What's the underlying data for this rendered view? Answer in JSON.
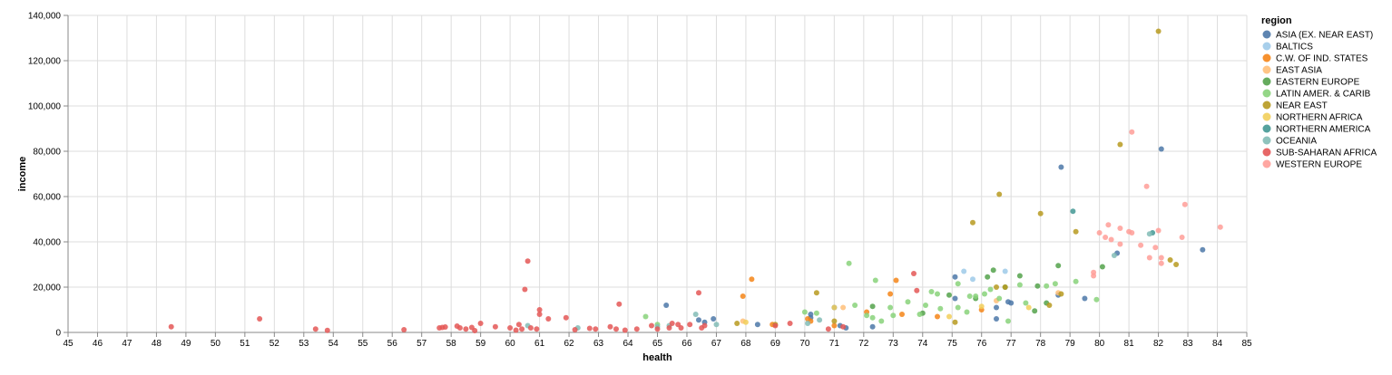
{
  "chart_data": {
    "type": "scatter",
    "xlabel": "health",
    "ylabel": "income",
    "xlim": [
      45,
      85
    ],
    "ylim": [
      0,
      140000
    ],
    "x_ticks": [
      45,
      46,
      47,
      48,
      49,
      50,
      51,
      52,
      53,
      54,
      55,
      56,
      57,
      58,
      59,
      60,
      61,
      62,
      63,
      64,
      65,
      66,
      67,
      68,
      69,
      70,
      71,
      72,
      73,
      74,
      75,
      76,
      77,
      78,
      79,
      80,
      81,
      82,
      83,
      84,
      85
    ],
    "y_ticks": [
      0,
      20000,
      40000,
      60000,
      80000,
      100000,
      120000,
      140000
    ],
    "y_tick_labels": [
      "0",
      "20,000",
      "40,000",
      "60,000",
      "80,000",
      "100,000",
      "120,000",
      "140,000"
    ],
    "grid": true,
    "legend": {
      "title": "region",
      "placement": "right",
      "entries": [
        {
          "name": "ASIA (EX. NEAR EAST)",
          "color": "#4c78a8"
        },
        {
          "name": "BALTICS",
          "color": "#9ecae9"
        },
        {
          "name": "C.W. OF IND. STATES",
          "color": "#f58518"
        },
        {
          "name": "EAST ASIA",
          "color": "#ffbf79"
        },
        {
          "name": "EASTERN EUROPE",
          "color": "#54a24b"
        },
        {
          "name": "LATIN AMER. & CARIB",
          "color": "#88d27a"
        },
        {
          "name": "NEAR EAST",
          "color": "#b79a20"
        },
        {
          "name": "NORTHERN AFRICA",
          "color": "#f2cf5b"
        },
        {
          "name": "NORTHERN AMERICA",
          "color": "#439894"
        },
        {
          "name": "OCEANIA",
          "color": "#83bcb6"
        },
        {
          "name": "SUB-SAHARAN AFRICA",
          "color": "#e45756"
        },
        {
          "name": "WESTERN EUROPE",
          "color": "#ff9d98"
        }
      ]
    },
    "series": [
      {
        "name": "ASIA (EX. NEAR EAST)",
        "points": [
          [
            65.3,
            12000
          ],
          [
            66.4,
            5500
          ],
          [
            66.6,
            4500
          ],
          [
            66.9,
            6000
          ],
          [
            68.4,
            3500
          ],
          [
            70.2,
            8000
          ],
          [
            70.2,
            6500
          ],
          [
            71.0,
            11000
          ],
          [
            71.2,
            3000
          ],
          [
            71.4,
            2000
          ],
          [
            72.3,
            2500
          ],
          [
            75.1,
            15000
          ],
          [
            75.1,
            24500
          ],
          [
            76.5,
            6000
          ],
          [
            76.5,
            11000
          ],
          [
            76.9,
            13500
          ],
          [
            77.0,
            13000
          ],
          [
            78.6,
            16500
          ],
          [
            78.7,
            73000
          ],
          [
            79.5,
            15000
          ],
          [
            80.6,
            35000
          ],
          [
            82.1,
            81000
          ],
          [
            83.5,
            36500
          ]
        ]
      },
      {
        "name": "BALTICS",
        "points": [
          [
            75.4,
            27000
          ],
          [
            76.8,
            27000
          ],
          [
            75.7,
            23500
          ]
        ]
      },
      {
        "name": "C.W. OF IND. STATES",
        "points": [
          [
            67.9,
            16000
          ],
          [
            68.2,
            23500
          ],
          [
            70.1,
            6000
          ],
          [
            70.2,
            5000
          ],
          [
            71.0,
            3000
          ],
          [
            72.1,
            9000
          ],
          [
            72.9,
            17000
          ],
          [
            73.1,
            23000
          ],
          [
            73.3,
            8000
          ],
          [
            74.5,
            7000
          ],
          [
            76.0,
            10000
          ],
          [
            68.9,
            3500
          ]
        ]
      },
      {
        "name": "EAST ASIA",
        "points": [
          [
            67.9,
            5000
          ],
          [
            76.5,
            14000
          ],
          [
            78.6,
            17500
          ],
          [
            71.3,
            11000
          ]
        ]
      },
      {
        "name": "EASTERN EUROPE",
        "points": [
          [
            72.3,
            11500
          ],
          [
            74.9,
            16500
          ],
          [
            75.8,
            15000
          ],
          [
            76.2,
            24500
          ],
          [
            76.4,
            27500
          ],
          [
            76.8,
            20000
          ],
          [
            77.3,
            25000
          ],
          [
            77.9,
            20500
          ],
          [
            78.2,
            13000
          ],
          [
            78.6,
            29500
          ],
          [
            80.1,
            29000
          ],
          [
            74.0,
            8500
          ],
          [
            77.8,
            9500
          ]
        ]
      },
      {
        "name": "LATIN AMER. & CARIB",
        "points": [
          [
            64.6,
            7000
          ],
          [
            65.0,
            3500
          ],
          [
            70.0,
            9000
          ],
          [
            70.4,
            8500
          ],
          [
            71.5,
            30500
          ],
          [
            71.7,
            12000
          ],
          [
            72.3,
            6500
          ],
          [
            72.4,
            23000
          ],
          [
            72.6,
            5000
          ],
          [
            72.9,
            11000
          ],
          [
            73.5,
            13500
          ],
          [
            73.9,
            8000
          ],
          [
            74.1,
            12000
          ],
          [
            74.3,
            18000
          ],
          [
            74.5,
            17000
          ],
          [
            74.6,
            10500
          ],
          [
            75.2,
            21500
          ],
          [
            75.2,
            11000
          ],
          [
            75.5,
            9000
          ],
          [
            75.6,
            16000
          ],
          [
            75.8,
            16000
          ],
          [
            76.1,
            17000
          ],
          [
            76.3,
            19000
          ],
          [
            76.6,
            15000
          ],
          [
            76.9,
            5000
          ],
          [
            77.3,
            21000
          ],
          [
            77.5,
            13000
          ],
          [
            78.2,
            20500
          ],
          [
            78.5,
            21500
          ],
          [
            79.2,
            22500
          ],
          [
            79.9,
            14500
          ],
          [
            72.1,
            7500
          ],
          [
            73.0,
            7500
          ]
        ]
      },
      {
        "name": "NEAR EAST",
        "points": [
          [
            67.7,
            4000
          ],
          [
            69.0,
            3500
          ],
          [
            70.4,
            17500
          ],
          [
            71.0,
            5000
          ],
          [
            75.1,
            4500
          ],
          [
            75.7,
            48500
          ],
          [
            76.5,
            20000
          ],
          [
            76.6,
            61000
          ],
          [
            76.8,
            20000
          ],
          [
            78.0,
            52500
          ],
          [
            78.3,
            12000
          ],
          [
            79.2,
            44500
          ],
          [
            80.7,
            83000
          ],
          [
            82.0,
            133000
          ],
          [
            82.4,
            32000
          ],
          [
            82.6,
            30000
          ],
          [
            78.7,
            17000
          ]
        ]
      },
      {
        "name": "NORTHERN AFRICA",
        "points": [
          [
            68.0,
            4500
          ],
          [
            71.0,
            11000
          ],
          [
            74.9,
            7000
          ],
          [
            76.0,
            11500
          ],
          [
            77.6,
            11000
          ]
        ]
      },
      {
        "name": "NORTHERN AMERICA",
        "points": [
          [
            79.1,
            53500
          ],
          [
            81.8,
            44000
          ]
        ]
      },
      {
        "name": "OCEANIA",
        "points": [
          [
            60.6,
            3000
          ],
          [
            62.3,
            2000
          ],
          [
            65.0,
            2500
          ],
          [
            65.4,
            3000
          ],
          [
            66.3,
            8000
          ],
          [
            67.0,
            3500
          ],
          [
            70.5,
            5500
          ],
          [
            81.7,
            43500
          ],
          [
            80.5,
            34000
          ],
          [
            70.1,
            4000
          ]
        ]
      },
      {
        "name": "SUB-SAHARAN AFRICA",
        "points": [
          [
            48.5,
            2500
          ],
          [
            51.5,
            6000
          ],
          [
            53.4,
            1500
          ],
          [
            53.8,
            900
          ],
          [
            56.4,
            1200
          ],
          [
            57.6,
            2000
          ],
          [
            57.7,
            2200
          ],
          [
            57.8,
            2400
          ],
          [
            58.2,
            2800
          ],
          [
            58.3,
            2000
          ],
          [
            58.5,
            1500
          ],
          [
            58.7,
            2200
          ],
          [
            58.8,
            800
          ],
          [
            59.0,
            4000
          ],
          [
            59.5,
            2500
          ],
          [
            60.0,
            2000
          ],
          [
            60.2,
            1000
          ],
          [
            60.3,
            3500
          ],
          [
            60.4,
            1500
          ],
          [
            60.5,
            19000
          ],
          [
            60.6,
            31500
          ],
          [
            60.7,
            2000
          ],
          [
            60.9,
            1500
          ],
          [
            61.0,
            10000
          ],
          [
            61.0,
            8000
          ],
          [
            61.3,
            6000
          ],
          [
            61.9,
            6500
          ],
          [
            62.2,
            1200
          ],
          [
            62.7,
            1800
          ],
          [
            62.9,
            1500
          ],
          [
            63.4,
            2500
          ],
          [
            63.6,
            1500
          ],
          [
            63.7,
            12500
          ],
          [
            63.9,
            1000
          ],
          [
            64.3,
            1500
          ],
          [
            64.8,
            3000
          ],
          [
            65.0,
            1500
          ],
          [
            65.4,
            2000
          ],
          [
            65.5,
            4000
          ],
          [
            65.7,
            3500
          ],
          [
            65.8,
            2000
          ],
          [
            66.1,
            3500
          ],
          [
            66.4,
            17500
          ],
          [
            66.5,
            2000
          ],
          [
            66.6,
            3000
          ],
          [
            69.0,
            3000
          ],
          [
            69.5,
            4000
          ],
          [
            73.7,
            26000
          ],
          [
            73.8,
            18500
          ],
          [
            70.8,
            1500
          ],
          [
            71.3,
            2500
          ]
        ]
      },
      {
        "name": "WESTERN EUROPE",
        "points": [
          [
            79.8,
            26500
          ],
          [
            79.8,
            25000
          ],
          [
            80.0,
            44000
          ],
          [
            80.2,
            42000
          ],
          [
            80.3,
            47500
          ],
          [
            80.4,
            41000
          ],
          [
            80.7,
            39000
          ],
          [
            80.7,
            46000
          ],
          [
            81.0,
            44500
          ],
          [
            81.1,
            88500
          ],
          [
            81.4,
            38500
          ],
          [
            81.6,
            64500
          ],
          [
            81.7,
            33000
          ],
          [
            81.9,
            37500
          ],
          [
            82.0,
            45000
          ],
          [
            82.1,
            33000
          ],
          [
            82.1,
            30500
          ],
          [
            82.8,
            42000
          ],
          [
            82.9,
            56500
          ],
          [
            84.1,
            46500
          ],
          [
            81.1,
            44000
          ]
        ]
      }
    ]
  }
}
